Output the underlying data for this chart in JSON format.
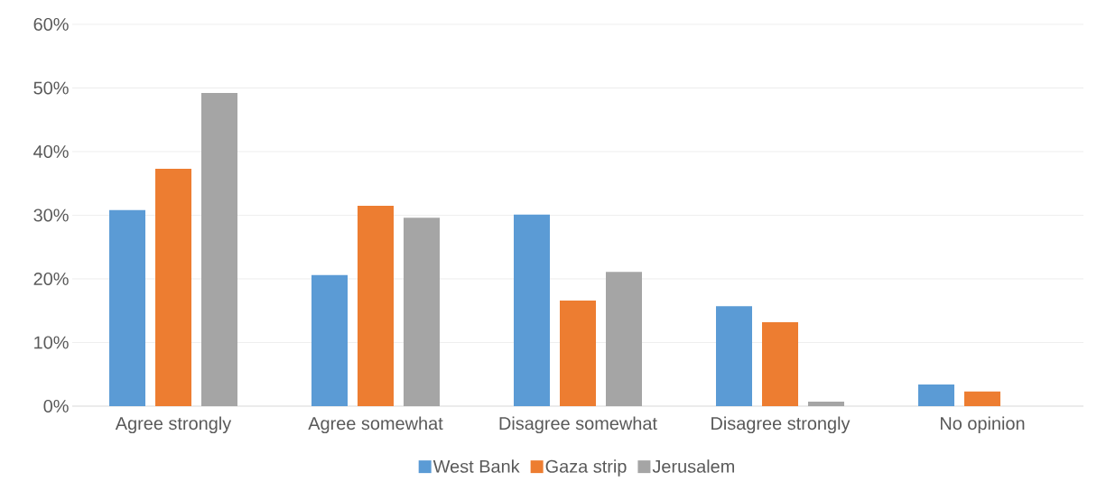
{
  "chart_data": {
    "type": "bar",
    "categories": [
      "Agree strongly",
      "Agree somewhat",
      "Disagree somewhat",
      "Disagree strongly",
      "No opinion"
    ],
    "series": [
      {
        "name": "West Bank",
        "color": "#5b9bd5",
        "values": [
          30.8,
          20.6,
          30.1,
          15.7,
          3.4
        ]
      },
      {
        "name": "Gaza strip",
        "color": "#ed7d31",
        "values": [
          37.3,
          31.5,
          16.6,
          13.2,
          2.3
        ]
      },
      {
        "name": "Jerusalem",
        "color": "#a5a5a5",
        "values": [
          49.2,
          29.6,
          21.1,
          0.7,
          null
        ]
      }
    ],
    "ylim": [
      0,
      60
    ],
    "yticks": [
      {
        "value": 0,
        "label": "0%"
      },
      {
        "value": 10,
        "label": "10%"
      },
      {
        "value": 20,
        "label": "20%"
      },
      {
        "value": 30,
        "label": "30%"
      },
      {
        "value": 40,
        "label": "40%"
      },
      {
        "value": 50,
        "label": "50%"
      },
      {
        "value": 60,
        "label": "60%"
      }
    ],
    "grid": "y",
    "legend": "bottom"
  }
}
